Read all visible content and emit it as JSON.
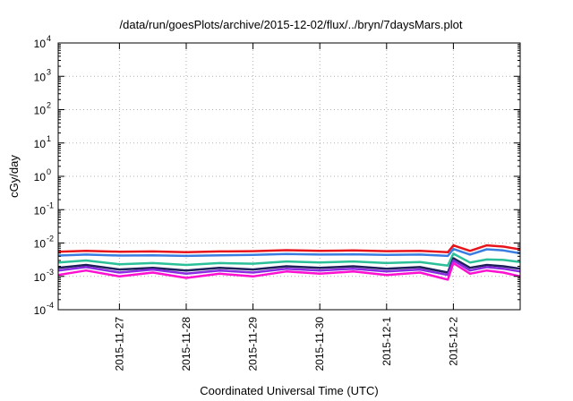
{
  "chart_data": {
    "type": "line",
    "title": "/data/run/goesPlots/archive/2015-12-02/flux/../bryn/7daysMars.plot",
    "xlabel": "Coordinated Universal Time (UTC)",
    "ylabel": "cGy/day",
    "y_scale": "log",
    "ylim": [
      0.0001,
      10000
    ],
    "y_ticks": [
      {
        "base": "10",
        "exp": "4",
        "value": 10000
      },
      {
        "base": "10",
        "exp": "3",
        "value": 1000
      },
      {
        "base": "10",
        "exp": "2",
        "value": 100
      },
      {
        "base": "10",
        "exp": "1",
        "value": 10
      },
      {
        "base": "10",
        "exp": "0",
        "value": 1
      },
      {
        "base": "10",
        "exp": "-1",
        "value": 0.1
      },
      {
        "base": "10",
        "exp": "-2",
        "value": 0.01
      },
      {
        "base": "10",
        "exp": "-3",
        "value": 0.001
      },
      {
        "base": "10",
        "exp": "-4",
        "value": 0.0001
      }
    ],
    "x_range": [
      "2015-11-26 02:00",
      "2015-12-03 00:00"
    ],
    "x_ticks": [
      "2015-11-27",
      "2015-11-28",
      "2015-11-29",
      "2015-11-30",
      "2015-12-1",
      "2015-12-2"
    ],
    "grid": true,
    "legend": "none",
    "series": [
      {
        "color": "#e8141c",
        "x": [
          "2015-11-26 02:00",
          "2015-11-26 12:00",
          "2015-11-27 00:00",
          "2015-11-27 12:00",
          "2015-11-28 00:00",
          "2015-11-28 12:00",
          "2015-11-29 00:00",
          "2015-11-29 12:00",
          "2015-11-30 00:00",
          "2015-11-30 12:00",
          "2015-12-01 00:00",
          "2015-12-01 12:00",
          "2015-12-01 22:00",
          "2015-12-02 00:00",
          "2015-12-02 06:00",
          "2015-12-02 12:00",
          "2015-12-02 18:00",
          "2015-12-03 00:00"
        ],
        "values": [
          0.0055,
          0.0058,
          0.0055,
          0.0056,
          0.0053,
          0.0056,
          0.0057,
          0.0061,
          0.0058,
          0.006,
          0.0057,
          0.0058,
          0.0053,
          0.0085,
          0.0058,
          0.0085,
          0.0078,
          0.0064
        ]
      },
      {
        "color": "#3a7de0",
        "x": [
          "2015-11-26 02:00",
          "2015-11-26 12:00",
          "2015-11-27 00:00",
          "2015-11-27 12:00",
          "2015-11-28 00:00",
          "2015-11-28 12:00",
          "2015-11-29 00:00",
          "2015-11-29 12:00",
          "2015-11-30 00:00",
          "2015-11-30 12:00",
          "2015-12-01 00:00",
          "2015-12-01 12:00",
          "2015-12-01 22:00",
          "2015-12-02 00:00",
          "2015-12-02 06:00",
          "2015-12-02 12:00",
          "2015-12-02 18:00",
          "2015-12-03 00:00"
        ],
        "values": [
          0.0042,
          0.0045,
          0.0042,
          0.0043,
          0.0041,
          0.0043,
          0.0044,
          0.0047,
          0.0045,
          0.0046,
          0.0044,
          0.0045,
          0.0041,
          0.0066,
          0.0045,
          0.0065,
          0.006,
          0.0049
        ]
      },
      {
        "color": "#2cc09a",
        "x": [
          "2015-11-26 02:00",
          "2015-11-26 12:00",
          "2015-11-27 00:00",
          "2015-11-27 12:00",
          "2015-11-28 00:00",
          "2015-11-28 12:00",
          "2015-11-29 00:00",
          "2015-11-29 12:00",
          "2015-11-30 00:00",
          "2015-11-30 12:00",
          "2015-12-01 00:00",
          "2015-12-01 12:00",
          "2015-12-01 22:00",
          "2015-12-02 00:00",
          "2015-12-02 06:00",
          "2015-12-02 12:00",
          "2015-12-02 18:00",
          "2015-12-03 00:00"
        ],
        "values": [
          0.0026,
          0.003,
          0.0023,
          0.0025,
          0.0022,
          0.0025,
          0.0024,
          0.0028,
          0.0026,
          0.0028,
          0.0025,
          0.0027,
          0.0021,
          0.0048,
          0.0026,
          0.0032,
          0.0031,
          0.0027
        ]
      },
      {
        "color": "#1e1e5a",
        "x": [
          "2015-11-26 02:00",
          "2015-11-26 12:00",
          "2015-11-27 00:00",
          "2015-11-27 12:00",
          "2015-11-28 00:00",
          "2015-11-28 12:00",
          "2015-11-29 00:00",
          "2015-11-29 12:00",
          "2015-11-30 00:00",
          "2015-11-30 12:00",
          "2015-12-01 00:00",
          "2015-12-01 12:00",
          "2015-12-01 22:00",
          "2015-12-02 00:00",
          "2015-12-02 06:00",
          "2015-12-02 12:00",
          "2015-12-02 18:00",
          "2015-12-03 00:00"
        ],
        "values": [
          0.0018,
          0.0022,
          0.0016,
          0.0018,
          0.0015,
          0.0018,
          0.0016,
          0.002,
          0.0018,
          0.002,
          0.0017,
          0.0019,
          0.0013,
          0.0035,
          0.0018,
          0.0022,
          0.002,
          0.0017
        ]
      },
      {
        "color": "#8a2be2",
        "x": [
          "2015-11-26 02:00",
          "2015-11-26 12:00",
          "2015-11-27 00:00",
          "2015-11-27 12:00",
          "2015-11-28 00:00",
          "2015-11-28 12:00",
          "2015-11-29 00:00",
          "2015-11-29 12:00",
          "2015-11-30 00:00",
          "2015-11-30 12:00",
          "2015-12-01 00:00",
          "2015-12-01 12:00",
          "2015-12-01 22:00",
          "2015-12-02 00:00",
          "2015-12-02 06:00",
          "2015-12-02 12:00",
          "2015-12-02 18:00",
          "2015-12-03 00:00"
        ],
        "values": [
          0.0015,
          0.0019,
          0.0013,
          0.0016,
          0.0012,
          0.0015,
          0.0013,
          0.0017,
          0.0015,
          0.0017,
          0.0014,
          0.0016,
          0.0011,
          0.003,
          0.0015,
          0.0019,
          0.0017,
          0.0014
        ]
      },
      {
        "color": "#ff10d0",
        "x": [
          "2015-11-26 02:00",
          "2015-11-26 12:00",
          "2015-11-27 00:00",
          "2015-11-27 12:00",
          "2015-11-28 00:00",
          "2015-11-28 12:00",
          "2015-11-29 00:00",
          "2015-11-29 12:00",
          "2015-11-30 00:00",
          "2015-11-30 12:00",
          "2015-12-01 00:00",
          "2015-12-01 12:00",
          "2015-12-01 22:00",
          "2015-12-02 00:00",
          "2015-12-02 06:00",
          "2015-12-02 12:00",
          "2015-12-02 18:00",
          "2015-12-03 00:00"
        ],
        "values": [
          0.0011,
          0.0015,
          0.001,
          0.0013,
          0.0009,
          0.0012,
          0.001,
          0.0014,
          0.0012,
          0.0014,
          0.0011,
          0.0013,
          0.0008,
          0.0025,
          0.0012,
          0.0015,
          0.0013,
          0.001
        ]
      }
    ]
  }
}
